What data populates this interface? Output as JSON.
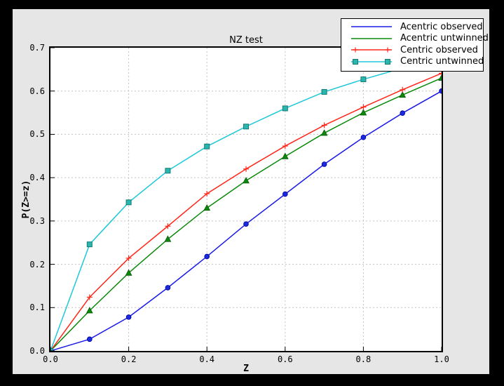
{
  "window": {
    "outer_background": "#000000",
    "figure_background": "#e6e6e6",
    "plot_background": "#ffffff"
  },
  "chart_data": {
    "type": "line",
    "title": "NZ test",
    "xlabel": "Z",
    "ylabel": "P(Z>=z)",
    "xlim": [
      0.0,
      1.0
    ],
    "ylim": [
      0.0,
      0.7
    ],
    "grid": true,
    "grid_style": "dashed",
    "legend_position": "upper right",
    "x_ticks": [
      0.0,
      0.2,
      0.4,
      0.6,
      0.8,
      1.0
    ],
    "x_tick_labels": [
      "0.0",
      "0.2",
      "0.4",
      "0.6",
      "0.8",
      "1.0"
    ],
    "y_ticks": [
      0.0,
      0.1,
      0.2,
      0.3,
      0.4,
      0.5,
      0.6,
      0.7
    ],
    "y_tick_labels": [
      "0.0",
      "0.1",
      "0.2",
      "0.3",
      "0.4",
      "0.5",
      "0.6",
      "0.7"
    ],
    "x": [
      0.0,
      0.1,
      0.2,
      0.3,
      0.4,
      0.5,
      0.6,
      0.7,
      0.8,
      0.9,
      1.0
    ],
    "series": [
      {
        "name": "Acentric observed",
        "color": "#1a1ae8",
        "marker": "circle",
        "marker_fill": "#1a2ae0",
        "marker_edge": "#000099",
        "legend_marker": "none",
        "values": [
          0.0,
          0.027,
          0.078,
          0.146,
          0.218,
          0.293,
          0.362,
          0.431,
          0.493,
          0.549,
          0.6
        ]
      },
      {
        "name": "Acentric untwinned",
        "color": "#0a8a0a",
        "marker": "triangle",
        "marker_fill": "#0a8a0a",
        "marker_edge": "#055505",
        "legend_marker": "none",
        "values": [
          0.0,
          0.093,
          0.18,
          0.258,
          0.33,
          0.393,
          0.449,
          0.503,
          0.55,
          0.591,
          0.63
        ]
      },
      {
        "name": "Centric observed",
        "color": "#ff2619",
        "marker": "plus",
        "marker_fill": "#ff2619",
        "marker_edge": "#ff2619",
        "legend_marker": "plus",
        "values": [
          0.0,
          0.124,
          0.214,
          0.288,
          0.363,
          0.42,
          0.473,
          0.521,
          0.563,
          0.603,
          0.641
        ]
      },
      {
        "name": "Centric untwinned",
        "color": "#1ec8d8",
        "marker": "square",
        "marker_fill": "#2ab6ae",
        "marker_edge": "#127c74",
        "legend_marker": "square",
        "values": [
          0.0,
          0.246,
          0.343,
          0.416,
          0.472,
          0.518,
          0.56,
          0.598,
          0.627,
          0.653,
          0.675
        ]
      }
    ]
  }
}
